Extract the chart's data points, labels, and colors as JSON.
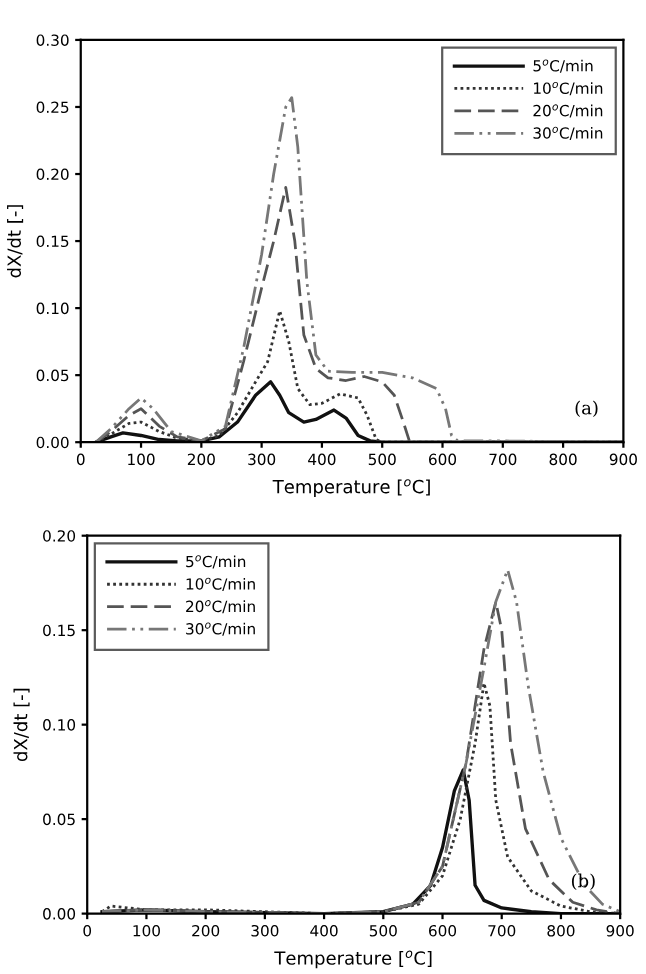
{
  "chart_data": [
    {
      "type": "line",
      "xlabel": "Temperature [$^{o}$C]",
      "ylabel": "dX/dt [-]",
      "annotations": [
        "(a)"
      ],
      "legend": "top right",
      "grid": false,
      "xlim": [
        0,
        900
      ],
      "xticks": [
        0,
        100,
        200,
        300,
        400,
        500,
        600,
        700,
        800,
        900
      ],
      "ylim": [
        0,
        0.3
      ],
      "yticks": [
        {
          "value": 0,
          "label": "0.00"
        },
        {
          "value": 0.05,
          "label": "0.05"
        },
        {
          "value": 0.1,
          "label": "0.10"
        },
        {
          "value": 0.15,
          "label": "0.15"
        },
        {
          "value": 0.2,
          "label": "0.20"
        },
        {
          "value": 0.25,
          "label": "0.25"
        },
        {
          "value": 0.3,
          "label": "0.30"
        }
      ],
      "series": [
        {
          "name": "5$^{o}$C/min",
          "color": "#111111",
          "line_style": "solid",
          "x": [
            25,
            50,
            70,
            100,
            130,
            160,
            200,
            230,
            260,
            290,
            315,
            330,
            345,
            370,
            390,
            420,
            440,
            460,
            480,
            500,
            900
          ],
          "values": [
            0,
            0.004,
            0.007,
            0.005,
            0.002,
            0.001,
            0.001,
            0.004,
            0.015,
            0.035,
            0.045,
            0.035,
            0.022,
            0.015,
            0.017,
            0.024,
            0.018,
            0.005,
            0.001,
            0,
            0
          ]
        },
        {
          "name": "10$^{o}$C/min",
          "color": "#333333",
          "line_style": "dotted",
          "x": [
            25,
            50,
            80,
            100,
            130,
            160,
            200,
            230,
            260,
            290,
            310,
            330,
            345,
            360,
            380,
            400,
            430,
            460,
            475,
            490,
            500,
            900
          ],
          "values": [
            0,
            0.006,
            0.014,
            0.015,
            0.008,
            0.003,
            0.001,
            0.005,
            0.022,
            0.045,
            0.06,
            0.098,
            0.075,
            0.04,
            0.028,
            0.029,
            0.036,
            0.033,
            0.02,
            0.002,
            0,
            0
          ]
        },
        {
          "name": "20$^{o}$C/min",
          "color": "#555555",
          "line_style": "dashed",
          "x": [
            25,
            50,
            80,
            100,
            130,
            160,
            200,
            240,
            270,
            300,
            320,
            340,
            355,
            370,
            390,
            410,
            440,
            470,
            500,
            520,
            535,
            545,
            560,
            900
          ],
          "values": [
            0,
            0.008,
            0.02,
            0.025,
            0.012,
            0.004,
            0.001,
            0.01,
            0.06,
            0.115,
            0.15,
            0.19,
            0.15,
            0.08,
            0.055,
            0.048,
            0.046,
            0.049,
            0.045,
            0.035,
            0.015,
            0.001,
            0,
            0
          ]
        },
        {
          "name": "30$^{o}$C/min",
          "color": "#777777",
          "line_style": "dashdot",
          "x": [
            25,
            50,
            80,
            100,
            120,
            150,
            200,
            240,
            270,
            300,
            320,
            340,
            350,
            360,
            375,
            390,
            410,
            450,
            500,
            550,
            590,
            605,
            615,
            625,
            680,
            900
          ],
          "values": [
            0,
            0.01,
            0.025,
            0.033,
            0.025,
            0.008,
            0.001,
            0.012,
            0.07,
            0.14,
            0.2,
            0.25,
            0.257,
            0.22,
            0.12,
            0.065,
            0.053,
            0.052,
            0.052,
            0.048,
            0.04,
            0.025,
            0.005,
            0.001,
            0.001,
            0
          ]
        }
      ]
    },
    {
      "type": "line",
      "xlabel": "Temperature [$^{o}$C]",
      "ylabel": "dX/dt [-]",
      "annotations": [
        "(b)"
      ],
      "legend": "top left",
      "grid": false,
      "xlim": [
        0,
        900
      ],
      "xticks": [
        0,
        100,
        200,
        300,
        400,
        500,
        600,
        700,
        800,
        900
      ],
      "ylim": [
        0,
        0.2
      ],
      "yticks": [
        {
          "value": 0,
          "label": "0.00"
        },
        {
          "value": 0.05,
          "label": "0.05"
        },
        {
          "value": 0.1,
          "label": "0.10"
        },
        {
          "value": 0.15,
          "label": "0.15"
        },
        {
          "value": 0.2,
          "label": "0.20"
        }
      ],
      "series": [
        {
          "name": "5$^{o}$C/min",
          "color": "#111111",
          "line_style": "solid",
          "x": [
            25,
            100,
            200,
            400,
            500,
            550,
            580,
            600,
            620,
            635,
            645,
            655,
            670,
            700,
            750,
            800,
            900
          ],
          "values": [
            0.001,
            0.002,
            0.001,
            0,
            0.001,
            0.005,
            0.015,
            0.035,
            0.065,
            0.076,
            0.06,
            0.015,
            0.007,
            0.003,
            0.001,
            0,
            0
          ]
        },
        {
          "name": "10$^{o}$C/min",
          "color": "#333333",
          "line_style": "dotted",
          "x": [
            25,
            40,
            100,
            200,
            400,
            500,
            560,
            600,
            630,
            655,
            670,
            680,
            690,
            710,
            750,
            800,
            850,
            900
          ],
          "values": [
            0.001,
            0.004,
            0.002,
            0.002,
            0,
            0.001,
            0.005,
            0.02,
            0.05,
            0.09,
            0.122,
            0.11,
            0.06,
            0.03,
            0.012,
            0.004,
            0.001,
            0
          ]
        },
        {
          "name": "20$^{o}$C/min",
          "color": "#555555",
          "line_style": "dashed",
          "x": [
            25,
            100,
            200,
            400,
            500,
            560,
            600,
            640,
            670,
            690,
            700,
            715,
            740,
            780,
            820,
            860,
            900
          ],
          "values": [
            0.001,
            0.002,
            0.001,
            0,
            0.001,
            0.006,
            0.025,
            0.08,
            0.14,
            0.165,
            0.15,
            0.09,
            0.045,
            0.018,
            0.006,
            0.002,
            0
          ]
        },
        {
          "name": "30$^{o}$C/min",
          "color": "#777777",
          "line_style": "dashdot",
          "x": [
            25,
            100,
            200,
            400,
            500,
            560,
            600,
            640,
            670,
            690,
            710,
            725,
            745,
            770,
            800,
            840,
            870,
            900
          ],
          "values": [
            0.001,
            0.002,
            0.001,
            0,
            0.001,
            0.006,
            0.025,
            0.08,
            0.13,
            0.165,
            0.182,
            0.165,
            0.12,
            0.075,
            0.04,
            0.015,
            0.005,
            0.001
          ]
        }
      ]
    }
  ]
}
